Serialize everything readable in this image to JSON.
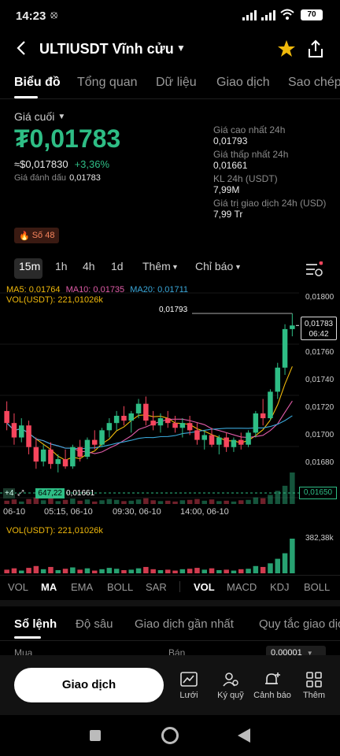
{
  "status_bar": {
    "time": "14:23",
    "battery": "70"
  },
  "header": {
    "title": "ULTIUSDT Vĩnh cửu"
  },
  "tabs": [
    "Biểu đồ",
    "Tổng quan",
    "Dữ liệu",
    "Giao dịch",
    "Sao chép"
  ],
  "price": {
    "label": "Giá cuối",
    "last": "₮0,01783",
    "usd": "≈$0,017830",
    "change": "+3,36%",
    "mark_label": "Giá đánh dấu",
    "mark_value": "0,01783"
  },
  "stats": [
    {
      "label": "Giá cao nhất 24h",
      "value": "0,01793"
    },
    {
      "label": "Giá thấp nhất 24h",
      "value": "0,01661"
    },
    {
      "label": "KL 24h (USDT)",
      "value": "7,99M"
    },
    {
      "label": "Giá trị giao dịch 24h (USD)",
      "value": "7,99 Tr"
    }
  ],
  "badge": "Số 48",
  "timeframes": {
    "items": [
      "15m",
      "1h",
      "4h",
      "1d"
    ],
    "more": "Thêm",
    "indicators": "Chỉ báo"
  },
  "ma_legend": {
    "ma5": "MA5: 0,01764",
    "ma10": "MA10: 0,01735",
    "ma20": "MA20: 0,01711",
    "vol": "VOL(USDT): 221,01026k"
  },
  "price_axis": [
    "0,01800",
    "0,01780",
    "0,01760",
    "0,01740",
    "0,01720",
    "0,01700",
    "0,01680",
    "0,01650"
  ],
  "current_price_tag": {
    "price": "0,01783",
    "countdown": "06:42"
  },
  "high_label": "0,01793",
  "low_tag": {
    "left": "+4",
    "value": "647,22",
    "low": "0,01661"
  },
  "time_axis": [
    "06-10",
    "05:15, 06-10",
    "09:30, 06-10",
    "14:00, 06-10"
  ],
  "vol_panel": {
    "label": "VOL(USDT): 221,01026k",
    "max": "382,38k"
  },
  "chart_data": {
    "type": "candlestick",
    "ylim": [
      0.0164,
      0.0181
    ],
    "candles": [
      [
        0.01712,
        0.0172,
        0.01696,
        0.01702
      ],
      [
        0.01702,
        0.0171,
        0.01684,
        0.0169
      ],
      [
        0.0169,
        0.01706,
        0.01686,
        0.017
      ],
      [
        0.017,
        0.01704,
        0.01676,
        0.01682
      ],
      [
        0.01682,
        0.0169,
        0.01664,
        0.0167
      ],
      [
        0.0167,
        0.01684,
        0.01666,
        0.0168
      ],
      [
        0.0168,
        0.01686,
        0.01664,
        0.01668
      ],
      [
        0.01668,
        0.01676,
        0.01661,
        0.01672
      ],
      [
        0.01672,
        0.0168,
        0.01664,
        0.01666
      ],
      [
        0.01666,
        0.01684,
        0.01664,
        0.01682
      ],
      [
        0.01682,
        0.01688,
        0.0167,
        0.01674
      ],
      [
        0.01674,
        0.0169,
        0.01672,
        0.01688
      ],
      [
        0.01688,
        0.01696,
        0.0168,
        0.01684
      ],
      [
        0.01684,
        0.01698,
        0.01682,
        0.01696
      ],
      [
        0.01696,
        0.01706,
        0.0169,
        0.01702
      ],
      [
        0.01702,
        0.01712,
        0.01696,
        0.01708
      ],
      [
        0.01708,
        0.01716,
        0.017,
        0.01704
      ],
      [
        0.01704,
        0.01712,
        0.01694,
        0.0171
      ],
      [
        0.0171,
        0.01722,
        0.01706,
        0.01718
      ],
      [
        0.01718,
        0.01724,
        0.017,
        0.01704
      ],
      [
        0.01704,
        0.01712,
        0.01696,
        0.017
      ],
      [
        0.017,
        0.0171,
        0.01694,
        0.01706
      ],
      [
        0.01706,
        0.01712,
        0.01698,
        0.01702
      ],
      [
        0.01702,
        0.01708,
        0.01694,
        0.01698
      ],
      [
        0.01698,
        0.01706,
        0.0169,
        0.01702
      ],
      [
        0.01702,
        0.01708,
        0.01692,
        0.01696
      ],
      [
        0.01696,
        0.01702,
        0.01684,
        0.01688
      ],
      [
        0.01688,
        0.01696,
        0.0168,
        0.01692
      ],
      [
        0.01692,
        0.01698,
        0.01682,
        0.01684
      ],
      [
        0.01684,
        0.01692,
        0.01676,
        0.0169
      ],
      [
        0.0169,
        0.01694,
        0.01678,
        0.01682
      ],
      [
        0.01682,
        0.0169,
        0.01678,
        0.01688
      ],
      [
        0.01688,
        0.01694,
        0.0168,
        0.01684
      ],
      [
        0.01684,
        0.01696,
        0.01682,
        0.01694
      ],
      [
        0.01694,
        0.01712,
        0.0169,
        0.0171
      ],
      [
        0.0171,
        0.01722,
        0.017,
        0.01706
      ],
      [
        0.01706,
        0.0173,
        0.01704,
        0.01728
      ],
      [
        0.01728,
        0.01752,
        0.01722,
        0.01748
      ],
      [
        0.01748,
        0.01784,
        0.01742,
        0.0178
      ],
      [
        0.0178,
        0.01793,
        0.01774,
        0.01783
      ]
    ],
    "volumes": [
      40,
      55,
      30,
      60,
      80,
      45,
      70,
      35,
      50,
      65,
      40,
      55,
      30,
      45,
      60,
      50,
      35,
      40,
      55,
      70,
      45,
      35,
      40,
      30,
      45,
      50,
      60,
      40,
      55,
      35,
      40,
      30,
      45,
      50,
      80,
      70,
      110,
      160,
      221,
      382
    ]
  },
  "indicators_main": [
    "VOL",
    "MA",
    "EMA",
    "BOLL",
    "SAR"
  ],
  "indicators_sub": [
    "VOL",
    "MACD",
    "KDJ",
    "BOLL"
  ],
  "orderbook_tabs": [
    "Sổ lệnh",
    "Độ sâu",
    "Giao dịch gần nhất",
    "Quy tắc giao dịch"
  ],
  "orderbook": {
    "buy": "Mua",
    "sell": "Bán",
    "step": "0,00001"
  },
  "bottom": {
    "trade_button": "Giao dịch",
    "actions": [
      {
        "label": "Lưới",
        "icon": "grid-chart-icon"
      },
      {
        "label": "Ký quỹ",
        "icon": "users-icon"
      },
      {
        "label": "Cảnh báo",
        "icon": "bell-plus-icon"
      },
      {
        "label": "Thêm",
        "icon": "apps-icon"
      }
    ]
  },
  "colors": {
    "up": "#2ebd85",
    "down": "#f6465d",
    "ma5": "#f0b90b",
    "ma10": "#e05ca8",
    "ma20": "#3aa7d9"
  }
}
